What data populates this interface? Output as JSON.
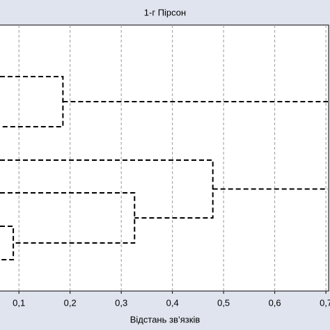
{
  "chart_data": {
    "type": "dendrogram",
    "title": "1-г Пірсон",
    "x_label": "Відстань зв’язків",
    "xlim": [
      0.063,
      0.708
    ],
    "xticks": [
      {
        "value": 0.1,
        "label": "0,1"
      },
      {
        "value": 0.2,
        "label": "0,2"
      },
      {
        "value": 0.3,
        "label": "0,3"
      },
      {
        "value": 0.4,
        "label": "0,4"
      },
      {
        "value": 0.5,
        "label": "0,5"
      },
      {
        "value": 0.6,
        "label": "0,6"
      },
      {
        "value": 0.7,
        "label": "0,7"
      }
    ],
    "grid": true,
    "color": "#000000",
    "merges": [
      {
        "left": 0,
        "right": 1,
        "height": 0.186
      },
      {
        "left": 4,
        "right": 5,
        "height": 0.089
      },
      {
        "left": 3,
        "right": "m1",
        "height": 0.326
      },
      {
        "left": 2,
        "right": "m2",
        "height": 0.479
      }
    ]
  }
}
